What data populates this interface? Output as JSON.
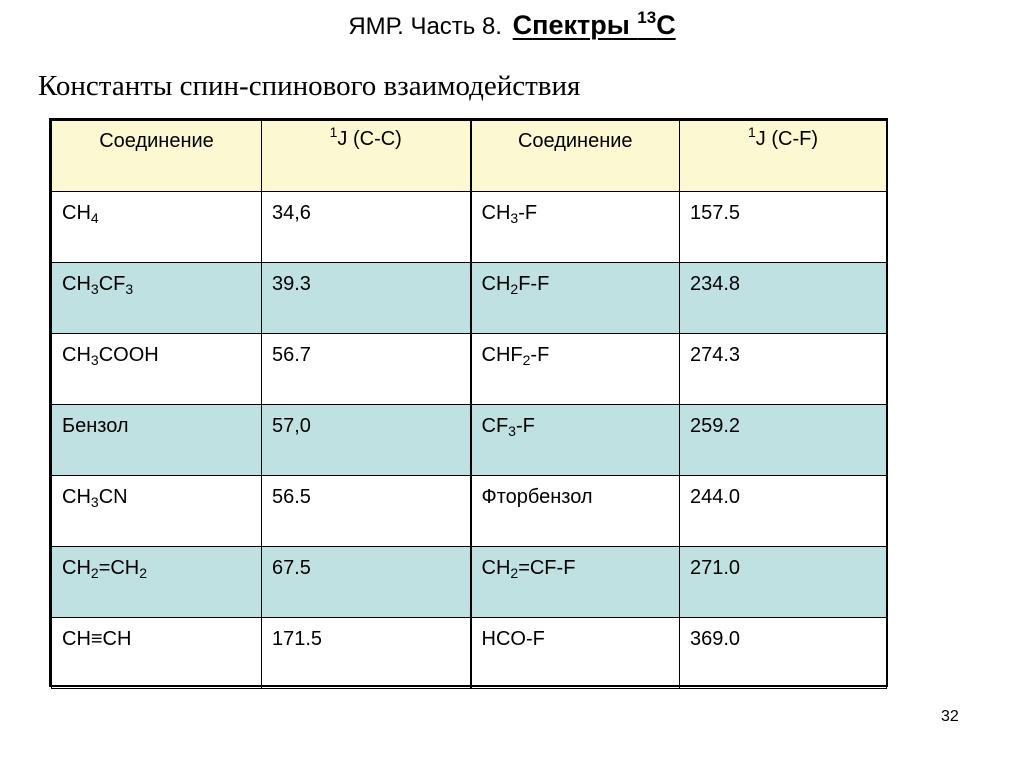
{
  "header": {
    "title_plain": "ЯМР. Часть 8.",
    "title_bold_prefix": "Спектры ",
    "title_sup": "13",
    "title_bold_suffix": "C"
  },
  "subtitle": "Константы спин-спинового взаимодействия",
  "table": {
    "headers": [
      {
        "parts": [
          {
            "t": "Соединение"
          }
        ]
      },
      {
        "parts": [
          {
            "t": "1",
            "f": "sup"
          },
          {
            "t": "J (C-C)"
          }
        ]
      },
      {
        "parts": [
          {
            "t": "Соединение"
          }
        ]
      },
      {
        "parts": [
          {
            "t": "1",
            "f": "sup"
          },
          {
            "t": "J (C-F)"
          }
        ]
      }
    ],
    "rows": [
      {
        "shaded": false,
        "compound_cc": [
          {
            "t": "CH"
          },
          {
            "t": "4",
            "f": "sub"
          }
        ],
        "j_cc": "34,6",
        "compound_cf": [
          {
            "t": "CH"
          },
          {
            "t": "3",
            "f": "sub"
          },
          {
            "t": "-F"
          }
        ],
        "j_cf": "157.5"
      },
      {
        "shaded": true,
        "compound_cc": [
          {
            "t": "CH"
          },
          {
            "t": "3",
            "f": "sub"
          },
          {
            "t": "CF"
          },
          {
            "t": "3",
            "f": "sub"
          }
        ],
        "j_cc": "39.3",
        "compound_cf": [
          {
            "t": "CH"
          },
          {
            "t": "2",
            "f": "sub"
          },
          {
            "t": "F-F"
          }
        ],
        "j_cf": "234.8"
      },
      {
        "shaded": false,
        "compound_cc": [
          {
            "t": "CH"
          },
          {
            "t": "3",
            "f": "sub"
          },
          {
            "t": "COOH"
          }
        ],
        "j_cc": "56.7",
        "compound_cf": [
          {
            "t": "CHF"
          },
          {
            "t": "2",
            "f": "sub"
          },
          {
            "t": "-F"
          }
        ],
        "j_cf": "274.3"
      },
      {
        "shaded": true,
        "compound_cc": [
          {
            "t": "Бензол"
          }
        ],
        "j_cc": "57,0",
        "compound_cf": [
          {
            "t": "CF"
          },
          {
            "t": "3",
            "f": "sub"
          },
          {
            "t": "-F"
          }
        ],
        "j_cf": "259.2"
      },
      {
        "shaded": false,
        "compound_cc": [
          {
            "t": "CH"
          },
          {
            "t": "3",
            "f": "sub"
          },
          {
            "t": "CN"
          }
        ],
        "j_cc": "56.5",
        "compound_cf": [
          {
            "t": "Фторбензол"
          }
        ],
        "j_cf": "244.0"
      },
      {
        "shaded": true,
        "compound_cc": [
          {
            "t": "CH"
          },
          {
            "t": "2",
            "f": "sub"
          },
          {
            "t": "=CH"
          },
          {
            "t": "2",
            "f": "sub"
          }
        ],
        "j_cc": "67.5",
        "compound_cf": [
          {
            "t": "CH"
          },
          {
            "t": "2",
            "f": "sub"
          },
          {
            "t": "=CF-F"
          }
        ],
        "j_cf": "271.0"
      },
      {
        "shaded": false,
        "compound_cc": [
          {
            "t": "CH≡CH"
          }
        ],
        "j_cc": "171.5",
        "compound_cf": [
          {
            "t": "HCO-F"
          }
        ],
        "j_cf": "369.0"
      }
    ]
  },
  "page_number": "32",
  "colors": {
    "header_fill": "#fbf8d2",
    "shaded_row_fill": "#bfe1e2",
    "border": "#000000",
    "text": "#000000"
  }
}
